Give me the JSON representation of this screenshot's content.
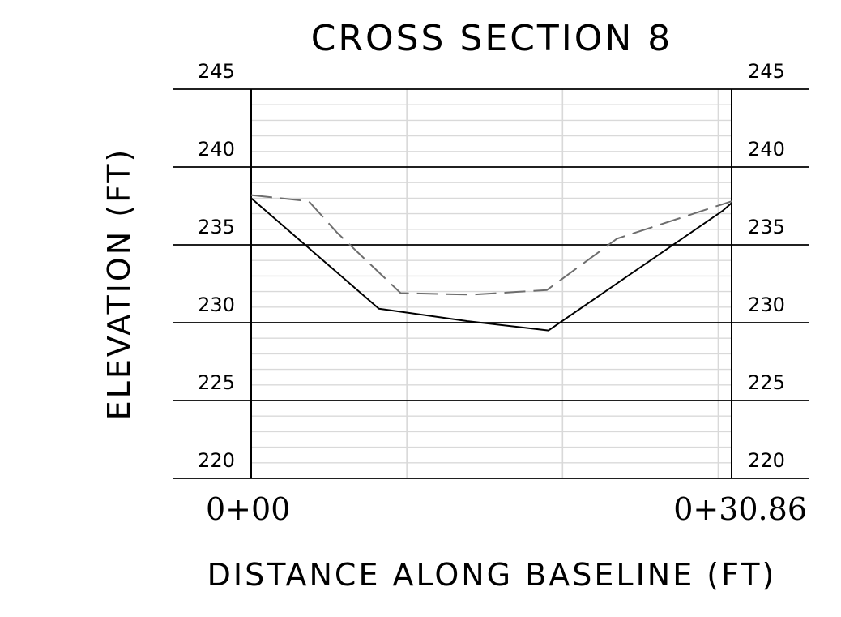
{
  "chart_data": {
    "type": "line",
    "title": "CROSS SECTION 8",
    "xlabel": "DISTANCE ALONG BASELINE (FT)",
    "ylabel": "ELEVATION (FT)",
    "xlim": [
      0,
      30.86
    ],
    "ylim": [
      220,
      245
    ],
    "y_ticks": [
      220,
      225,
      230,
      235,
      240,
      245
    ],
    "y_tick_labels": [
      "220",
      "225",
      "230",
      "235",
      "240",
      "245"
    ],
    "x_tick_labels": [
      "0+00",
      "0+30.86"
    ],
    "grid": true,
    "series": [
      {
        "style": "solid",
        "color": "#000000",
        "x": [
          0,
          8.2,
          13.9,
          19.1,
          30.3,
          30.86
        ],
        "y": [
          238.0,
          230.9,
          230.1,
          229.5,
          237.2,
          237.7
        ]
      },
      {
        "style": "dashed",
        "color": "#6e6e6e",
        "x": [
          0,
          3.7,
          5.5,
          9.6,
          14.2,
          19.0,
          23.5,
          30.86
        ],
        "y": [
          238.2,
          237.8,
          235.8,
          231.9,
          231.8,
          232.1,
          235.4,
          237.8
        ]
      }
    ]
  }
}
